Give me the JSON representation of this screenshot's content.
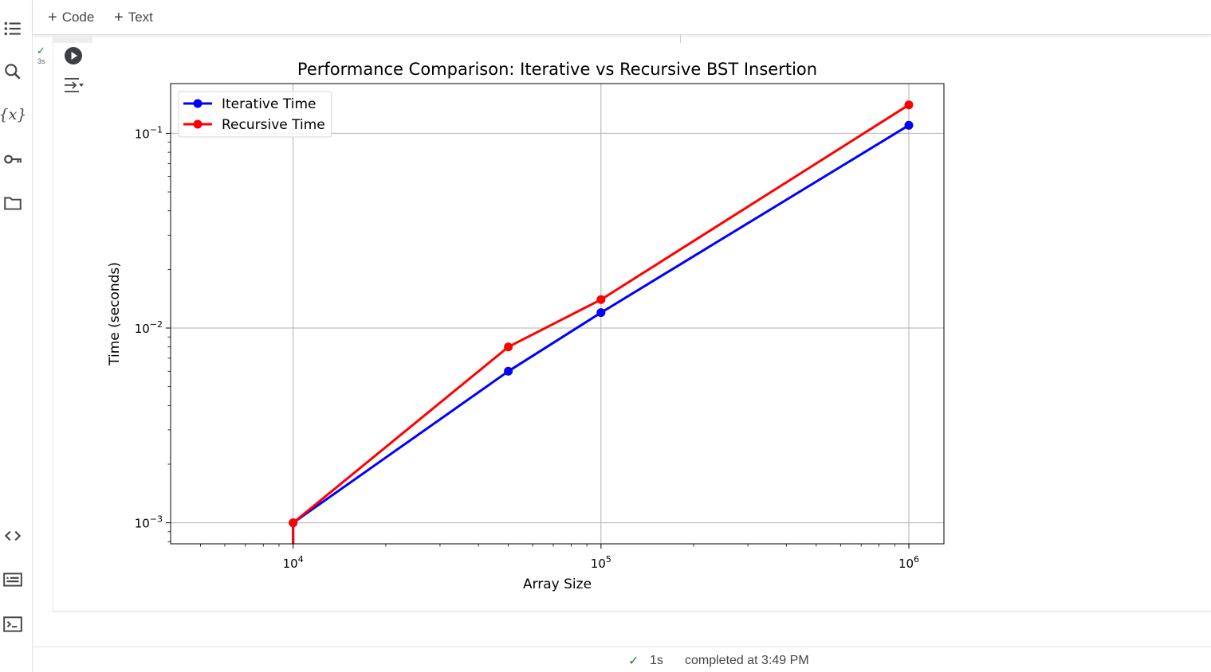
{
  "toolbar": {
    "code_label": "Code",
    "text_label": "Text"
  },
  "sidebar": {
    "icons": [
      "table-of-contents-icon",
      "search-icon",
      "variables-icon",
      "secrets-key-icon",
      "files-folder-icon"
    ],
    "bottom_icons": [
      "code-snippets-icon",
      "command-palette-icon",
      "terminal-icon"
    ],
    "variables_glyph": "{x}"
  },
  "cell": {
    "exec_time": "3s"
  },
  "status": {
    "duration": "1s",
    "message": "completed at 3:49 PM"
  },
  "colors": {
    "iterative": "#0000ff",
    "recursive": "#ff0000",
    "check": "#188038"
  },
  "chart_data": {
    "type": "line",
    "title": "Performance Comparison: Iterative vs Recursive BST Insertion",
    "xlabel": "Array Size",
    "ylabel": "Time (seconds)",
    "xscale": "log",
    "yscale": "log",
    "xlim": [
      4000,
      1300000
    ],
    "ylim": [
      0.00078,
      0.18
    ],
    "grid": true,
    "legend_position": "top-left",
    "x": [
      10000,
      50000,
      100000,
      1000000
    ],
    "series": [
      {
        "name": "Iterative Time",
        "color": "#0000ff",
        "values": [
          0.001,
          0.006,
          0.012,
          0.11
        ]
      },
      {
        "name": "Recursive Time",
        "color": "#ff0000",
        "values": [
          0.001,
          0.008,
          0.014,
          0.14
        ]
      }
    ],
    "x_ticks": [
      {
        "value": 10000,
        "base": "10",
        "exp": "4"
      },
      {
        "value": 100000,
        "base": "10",
        "exp": "5"
      },
      {
        "value": 1000000,
        "base": "10",
        "exp": "6"
      }
    ],
    "y_ticks": [
      {
        "value": 0.001,
        "base": "10",
        "exp": "−3"
      },
      {
        "value": 0.01,
        "base": "10",
        "exp": "−2"
      },
      {
        "value": 0.1,
        "base": "10",
        "exp": "−1"
      }
    ]
  }
}
